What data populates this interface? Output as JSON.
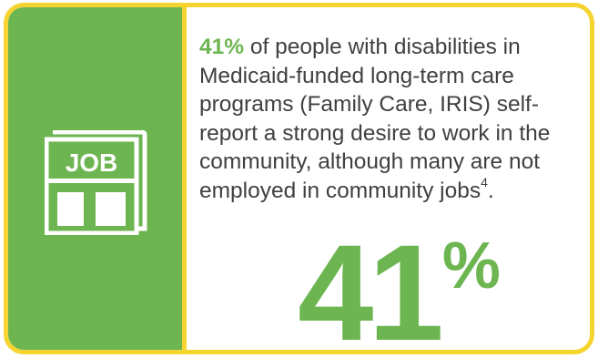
{
  "icon": {
    "name": "job-icon",
    "label": "JOB",
    "color": "#ffffff"
  },
  "statement": {
    "highlight": "41%",
    "text": " of people with disabilities in Medicaid-funded long-term care programs (Family Care, IRIS) self-report a strong desire to work in the community, although many are not employed in community jobs",
    "footnote": "4",
    "end": "."
  },
  "stat": {
    "number": "41",
    "unit": "%"
  },
  "colors": {
    "accent_green": "#6db550",
    "border_yellow": "#f5d430",
    "text": "#404040"
  }
}
